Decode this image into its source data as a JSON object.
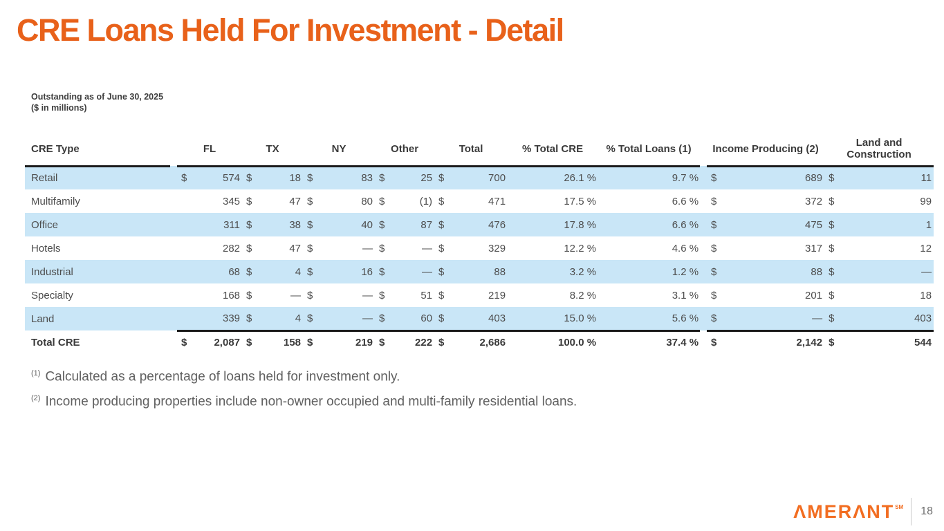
{
  "slide": {
    "title": "CRE Loans Held For Investment - Detail",
    "subtitle_line1": "Outstanding as of June 30, 2025",
    "subtitle_line2": "($ in millions)",
    "page_number": "18"
  },
  "brand": {
    "logo_text": "ΛMERΛNT",
    "trademark": "SM",
    "logo_color": "#F26D21"
  },
  "colors": {
    "title_orange": "#E8611A",
    "row_highlight_blue": "#C9E6F7",
    "rule_black": "#1B1B1B"
  },
  "table": {
    "headers": [
      "CRE Type",
      "FL",
      "TX",
      "NY",
      "Other",
      "Total",
      "% Total CRE",
      "% Total Loans (1)",
      "Income Producing (2)",
      "Land and Construction"
    ],
    "rows": [
      {
        "label": "Retail",
        "cells": [
          "$",
          "574",
          "$",
          "18",
          "$",
          "83",
          "$",
          "25",
          "$",
          "700",
          "26.1 %",
          "9.7 %",
          "$",
          "689",
          "$",
          "11"
        ]
      },
      {
        "label": "Multifamily",
        "cells": [
          "",
          "345",
          "$",
          "47",
          "$",
          "80",
          "$",
          "(1)",
          "$",
          "471",
          "17.5 %",
          "6.6 %",
          "$",
          "372",
          "$",
          "99"
        ]
      },
      {
        "label": "Office",
        "cells": [
          "",
          "311",
          "$",
          "38",
          "$",
          "40",
          "$",
          "87",
          "$",
          "476",
          "17.8 %",
          "6.6 %",
          "$",
          "475",
          "$",
          "1"
        ]
      },
      {
        "label": "Hotels",
        "cells": [
          "",
          "282",
          "$",
          "47",
          "$",
          "—",
          "$",
          "—",
          "$",
          "329",
          "12.2 %",
          "4.6 %",
          "$",
          "317",
          "$",
          "12"
        ]
      },
      {
        "label": "Industrial",
        "cells": [
          "",
          "68",
          "$",
          "4",
          "$",
          "16",
          "$",
          "—",
          "$",
          "88",
          "3.2 %",
          "1.2 %",
          "$",
          "88",
          "$",
          "—"
        ]
      },
      {
        "label": "Specialty",
        "cells": [
          "",
          "168",
          "$",
          "—",
          "$",
          "—",
          "$",
          "51",
          "$",
          "219",
          "8.2 %",
          "3.1 %",
          "$",
          "201",
          "$",
          "18"
        ]
      },
      {
        "label": "Land",
        "cells": [
          "",
          "339",
          "$",
          "4",
          "$",
          "—",
          "$",
          "60",
          "$",
          "403",
          "15.0 %",
          "5.6 %",
          "$",
          "—",
          "$",
          "403"
        ]
      },
      {
        "label": "Total CRE",
        "cells": [
          "$",
          "2,087",
          "$",
          "158",
          "$",
          "219",
          "$",
          "222",
          "$",
          "2,686",
          "100.0 %",
          "37.4 %",
          "$",
          "2,142",
          "$",
          "544"
        ]
      }
    ]
  },
  "footnotes": [
    {
      "marker": "(1)",
      "text": "Calculated as a percentage of loans held for investment only."
    },
    {
      "marker": "(2)",
      "text": "Income producing properties include non-owner occupied and multi-family residential loans."
    }
  ]
}
